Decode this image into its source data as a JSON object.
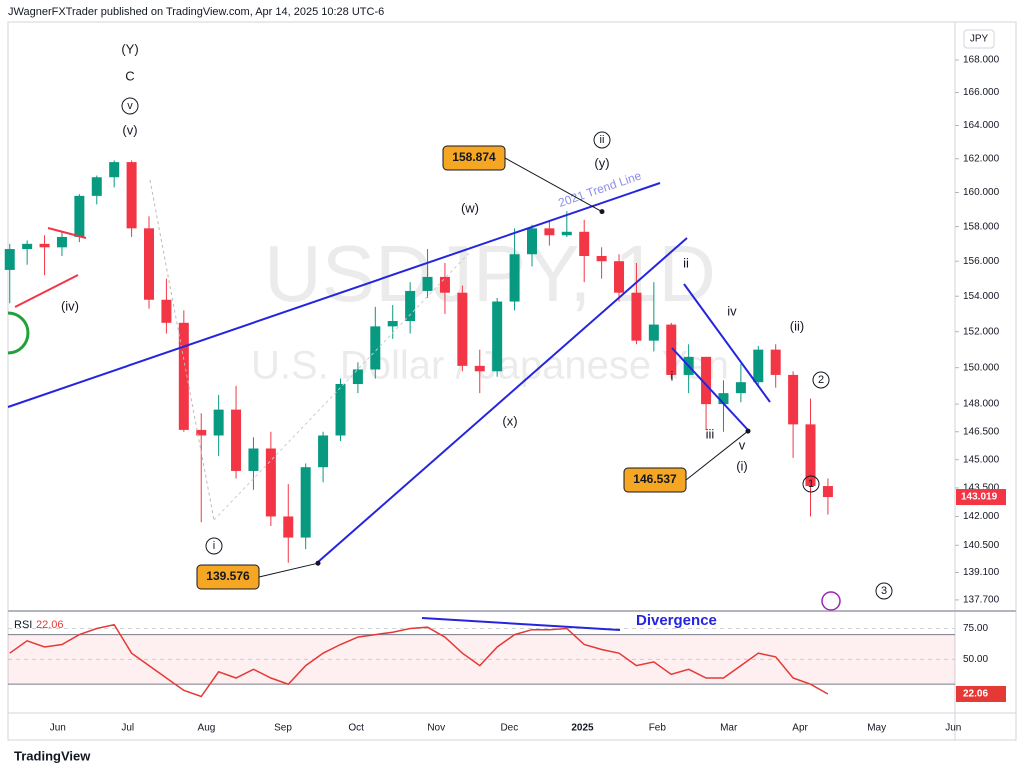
{
  "header": {
    "publisher": "JWagnerFXTrader published on TradingView.com, Apr 14, 2025 10:28 UTC-6",
    "brand": "TradingView"
  },
  "chart_data": {
    "type": "candlestick",
    "title": "USDJPY, 1D",
    "subtitle": "U.S. Dollar / Japanese Yen",
    "currency": "JPY",
    "log_scale": true,
    "up_color": "#089981",
    "down_color": "#f23645",
    "open": [
      155.5,
      156.7,
      157,
      156.8,
      157.4,
      159.8,
      160.9,
      161.8,
      157.9,
      153.8,
      152.5,
      146.6,
      146.3,
      147.7,
      144.4,
      145.6,
      142,
      140.9,
      144.6,
      146.3,
      149.1,
      149.9,
      152.3,
      152.6,
      154.3,
      155.1,
      154.2,
      150.1,
      149.8,
      153.7,
      156.4,
      157.9,
      157.5,
      157.7,
      156.3,
      156,
      154.2,
      151.5,
      152.4,
      149.6,
      150.6,
      148,
      148.6,
      149.2,
      151,
      149.6,
      146.9,
      143.6
    ],
    "high": [
      157,
      157.2,
      157.5,
      157.7,
      159.9,
      161,
      161.9,
      161.9,
      158.6,
      155,
      153.2,
      147.5,
      148.5,
      149,
      146.2,
      146.5,
      143.7,
      144.8,
      146.5,
      149.4,
      150.3,
      153.4,
      153.5,
      154.8,
      156.7,
      155.9,
      154.6,
      151,
      153.9,
      157.9,
      158.1,
      158.3,
      158.9,
      158.4,
      156.8,
      156.4,
      155.9,
      154.8,
      152.5,
      151.3,
      150.6,
      149.3,
      150.2,
      151.2,
      151.3,
      149.8,
      148.3,
      144
    ],
    "low": [
      153.6,
      155.8,
      155.2,
      156.3,
      157.1,
      159.3,
      160.3,
      157.4,
      153.3,
      151.9,
      146.5,
      141.7,
      145.2,
      144,
      143.4,
      141.5,
      139.6,
      140.3,
      143.8,
      146,
      148.6,
      149.4,
      151.6,
      151.9,
      153.9,
      153,
      149.8,
      148.6,
      149.5,
      153.2,
      155.7,
      156.9,
      157.4,
      154.8,
      155,
      153.7,
      151.3,
      150.9,
      149.4,
      148.6,
      146.6,
      146.5,
      148.1,
      149,
      148.9,
      145.1,
      142,
      142.1
    ],
    "close": [
      156.7,
      157,
      156.8,
      157.4,
      159.8,
      160.9,
      161.8,
      157.9,
      153.8,
      152.5,
      146.6,
      146.3,
      147.7,
      144.4,
      145.6,
      142,
      140.9,
      144.6,
      146.3,
      149.1,
      149.9,
      152.3,
      152.6,
      154.3,
      155.1,
      154.2,
      150.1,
      149.8,
      153.7,
      156.4,
      157.9,
      157.5,
      157.7,
      156.3,
      156,
      154.2,
      151.5,
      152.4,
      149.6,
      150.6,
      148,
      148.6,
      149.2,
      151,
      149.6,
      146.9,
      143.6,
      143.019
    ],
    "ylim": [
      137.19,
      170.37
    ],
    "yticks": [
      {
        "value": 168,
        "label": "168.000"
      },
      {
        "value": 166,
        "label": "166.000"
      },
      {
        "value": 164,
        "label": "164.000"
      },
      {
        "value": 162,
        "label": "162.000"
      },
      {
        "value": 160,
        "label": "160.000"
      },
      {
        "value": 158,
        "label": "158.000"
      },
      {
        "value": 156,
        "label": "156.000"
      },
      {
        "value": 154,
        "label": "154.000"
      },
      {
        "value": 152,
        "label": "152.000"
      },
      {
        "value": 150,
        "label": "150.000"
      },
      {
        "value": 148,
        "label": "148.000"
      },
      {
        "value": 146.5,
        "label": "146.500"
      },
      {
        "value": 145,
        "label": "145.000"
      },
      {
        "value": 143.5,
        "label": "143.500"
      },
      {
        "value": 142,
        "label": "142.000"
      },
      {
        "value": 140.5,
        "label": "140.500"
      },
      {
        "value": 139.1,
        "label": "139.100"
      },
      {
        "value": 137.7,
        "label": "137.700"
      }
    ],
    "xlim": [
      -0.1,
      54.3
    ],
    "xticks": [
      {
        "value": 2.76,
        "label": "Jun"
      },
      {
        "value": 6.78,
        "label": "Jul"
      },
      {
        "value": 11.3,
        "label": "Aug"
      },
      {
        "value": 15.7,
        "label": "Sep"
      },
      {
        "value": 19.9,
        "label": "Oct"
      },
      {
        "value": 24.5,
        "label": "Nov"
      },
      {
        "value": 28.7,
        "label": "Dec"
      },
      {
        "value": 32.9,
        "label": "2025"
      },
      {
        "value": 37.2,
        "label": "Feb"
      },
      {
        "value": 41.3,
        "label": "Mar"
      },
      {
        "value": 45.4,
        "label": "Apr"
      },
      {
        "value": 49.8,
        "label": "May"
      },
      {
        "value": 54.2,
        "label": "Jun"
      }
    ],
    "callouts": [
      158.874,
      146.537,
      139.576
    ],
    "trend_line_label": "2021 Trend Line",
    "annotations": [
      "(Y)",
      "C",
      "v",
      "(v)",
      "(iv)",
      "i",
      "(w)",
      "(x)",
      "ii",
      "(y)",
      "ii",
      "iv",
      "i",
      "iii",
      "v",
      "(i)",
      "(ii)",
      "2",
      "1",
      "3"
    ],
    "rsi": {
      "name": "RSI",
      "color": "#e53935",
      "values": [
        55,
        65,
        60,
        62,
        70,
        75,
        78,
        55,
        45,
        35,
        25,
        20,
        40,
        35,
        42,
        35,
        30,
        45,
        55,
        62,
        68,
        70,
        72,
        75,
        76,
        68,
        55,
        45,
        60,
        70,
        74,
        74,
        75,
        62,
        58,
        55,
        45,
        48,
        38,
        42,
        35,
        35,
        45,
        55,
        52,
        35,
        30,
        22.06
      ],
      "ylim": [
        7.5,
        88.3
      ],
      "yticks": [
        {
          "value": 75,
          "label": "75.00"
        },
        {
          "value": 50,
          "label": "50.00"
        }
      ],
      "bands": [
        30,
        70
      ],
      "divergence_label": "Divergence"
    }
  }
}
